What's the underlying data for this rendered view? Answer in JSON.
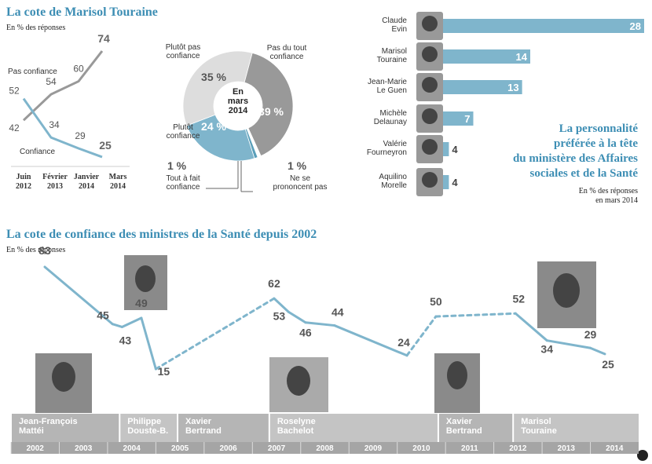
{
  "chart_data": [
    {
      "type": "line",
      "title": "La cote de Marisol Touraine",
      "subtitle": "En % des réponses",
      "categories": [
        "Juin\n2012",
        "Février\n2013",
        "Janvier\n2014",
        "Mars\n2014"
      ],
      "series": [
        {
          "name": "Pas confiance",
          "color": "#999999",
          "values": [
            42,
            54,
            60,
            74
          ]
        },
        {
          "name": "Confiance",
          "color": "#7fb5cc",
          "values": [
            52,
            34,
            29,
            25
          ]
        }
      ]
    },
    {
      "type": "pie",
      "center_label": "En\nmars\n2014",
      "categories": [
        "Pas du tout\nconfiance",
        "Ne se\nprononcent pas",
        "Tout à fait\nconfiance",
        "Plutôt\nconfiance",
        "Plutôt pas\nconfiance"
      ],
      "values": [
        39,
        1,
        1,
        24,
        35
      ],
      "value_labels": [
        "39 %",
        "1 %",
        "1 %",
        "24 %",
        "35 %"
      ],
      "colors": [
        "#999999",
        "#ffffff",
        "#5a9fba",
        "#7fb5cc",
        "#dddddd"
      ]
    },
    {
      "type": "hbar",
      "title": "La personnalité\npréférée à la tête\ndu ministère des Affaires\nsociales et de la Santé",
      "subtitle": "En % des réponses\nen mars 2014",
      "categories": [
        "Claude\nEvin",
        "Marisol\nTouraine",
        "Jean-Marie\nLe Guen",
        "Michèle\nDelaunay",
        "Valérie\nFourneyron",
        "Aquilino\nMorelle"
      ],
      "values": [
        28,
        14,
        13,
        7,
        4,
        4
      ],
      "color": "#7fb5cc"
    },
    {
      "type": "timeline",
      "title": "La cote de confiance des ministres de la Santé depuis 2002",
      "subtitle": "En % des réponses",
      "x": [
        2002.7,
        2004.1,
        2004.3,
        2004.7,
        2005.0,
        2007.45,
        2007.75,
        2008.1,
        2008.7,
        2010.2,
        2010.8,
        2012.45,
        2013.1,
        2014.0,
        2014.3
      ],
      "values": [
        83,
        45,
        43,
        49,
        15,
        62,
        53,
        46,
        44,
        24,
        50,
        52,
        34,
        29,
        25
      ],
      "color": "#7fb5cc",
      "dashed_segments": [
        4,
        9,
        10
      ],
      "xlim": [
        2002,
        2015
      ],
      "xticks": [
        2002,
        2003,
        2004,
        2005,
        2006,
        2007,
        2008,
        2009,
        2010,
        2011,
        2012,
        2013,
        2014
      ],
      "periods": [
        {
          "name": "Jean-François\nMattéi",
          "start": 2002,
          "end": 2004.25
        },
        {
          "name": "Philippe\nDouste-B.",
          "start": 2004.25,
          "end": 2005.45
        },
        {
          "name": "Xavier\nBertrand",
          "start": 2005.45,
          "end": 2007.35
        },
        {
          "name": "Roselyne\nBachelot",
          "start": 2007.35,
          "end": 2010.85
        },
        {
          "name": "Xavier\nBertrand",
          "start": 2010.85,
          "end": 2012.4
        },
        {
          "name": "Marisol\nTouraine",
          "start": 2012.4,
          "end": 2015
        }
      ]
    }
  ]
}
